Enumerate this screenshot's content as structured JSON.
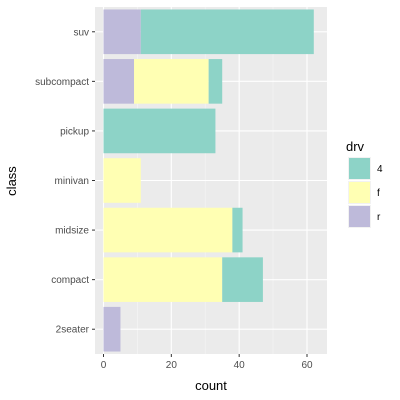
{
  "chart_data": {
    "type": "bar",
    "orientation": "horizontal",
    "stacked": true,
    "categories": [
      "2seater",
      "compact",
      "midsize",
      "minivan",
      "pickup",
      "subcompact",
      "suv"
    ],
    "series": [
      {
        "name": "4",
        "color": "#8dd3c7",
        "values": [
          0,
          12,
          3,
          0,
          33,
          4,
          51
        ]
      },
      {
        "name": "f",
        "color": "#ffffb3",
        "values": [
          0,
          35,
          38,
          11,
          0,
          22,
          0
        ]
      },
      {
        "name": "r",
        "color": "#bebada",
        "values": [
          5,
          0,
          0,
          0,
          0,
          9,
          11
        ]
      }
    ],
    "xlabel": "count",
    "ylabel": "class",
    "xlim": [
      0,
      64
    ],
    "xticks": [
      0,
      20,
      40,
      60
    ],
    "xtick_labels": [
      "0",
      "20",
      "40",
      "60"
    ],
    "legend": {
      "title": "drv",
      "position": "right",
      "entries": [
        "4",
        "f",
        "r"
      ]
    },
    "grid": true,
    "panel_background": "#ebebeb"
  }
}
